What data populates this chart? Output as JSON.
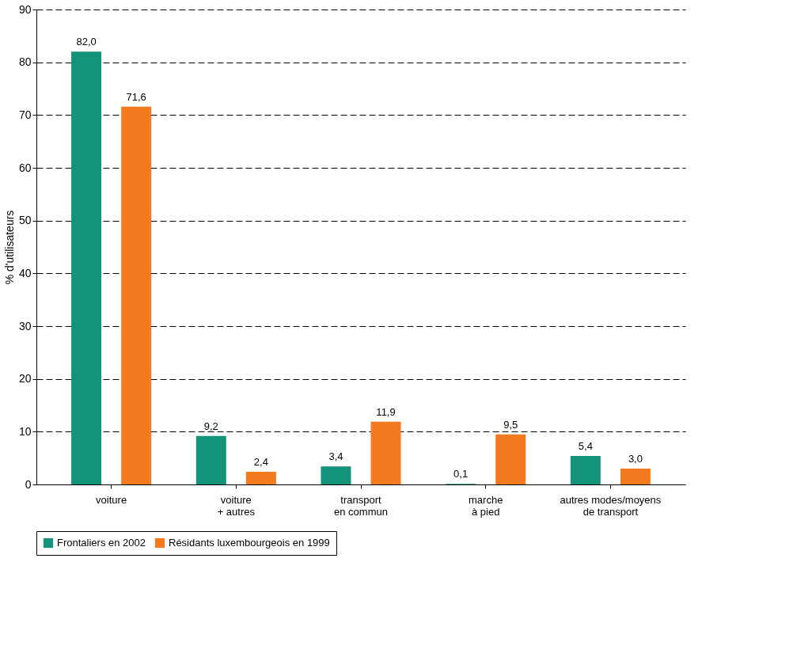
{
  "chart_data": {
    "type": "bar",
    "ylabel": "% d'utilisateurs",
    "categories": [
      "voiture",
      "voiture + autres",
      "transport en commun",
      "marche à pied",
      "autres modes/moyens de transport"
    ],
    "series": [
      {
        "name": "Frontaliers en 2002",
        "color": "#12937a",
        "values": [
          82.0,
          9.2,
          3.4,
          0.1,
          5.4
        ],
        "value_labels": [
          "82,0",
          "9,2",
          "3,4",
          "0,1",
          "5,4"
        ]
      },
      {
        "name": "Résidants luxembourgeois en 1999",
        "color": "#f47a20",
        "values": [
          71.6,
          2.4,
          11.9,
          9.5,
          3.0
        ],
        "value_labels": [
          "71,6",
          "2,4",
          "11,9",
          "9,5",
          "3,0"
        ]
      }
    ],
    "ylim": [
      0,
      90
    ],
    "yticks": [
      0,
      10,
      20,
      30,
      40,
      50,
      60,
      70,
      80,
      90
    ],
    "grid": "y",
    "legend": "bottom"
  }
}
